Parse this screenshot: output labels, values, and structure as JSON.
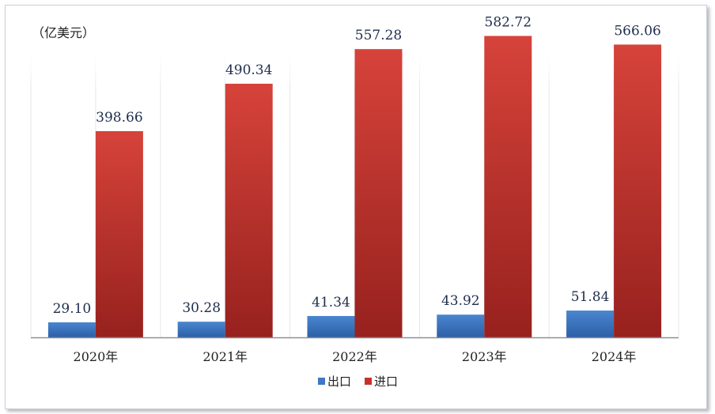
{
  "chart_data": {
    "type": "bar",
    "unit_label": "（亿美元）",
    "categories": [
      "2020年",
      "2021年",
      "2022年",
      "2023年",
      "2024年"
    ],
    "series": [
      {
        "name": "出口",
        "values": [
          29.1,
          30.28,
          41.34,
          43.92,
          51.84
        ],
        "color": "#3f78c4"
      },
      {
        "name": "进口",
        "values": [
          398.66,
          490.34,
          557.28,
          582.72,
          566.06
        ],
        "color": "#c9302c"
      }
    ],
    "data_labels": [
      [
        "29.10",
        "30.28",
        "41.34",
        "43.92",
        "51.84"
      ],
      [
        "398.66",
        "490.34",
        "557.28",
        "582.72",
        "566.06"
      ]
    ],
    "ylim": [
      0,
      640
    ],
    "gridlines": "vertical",
    "legend": "bottom"
  }
}
